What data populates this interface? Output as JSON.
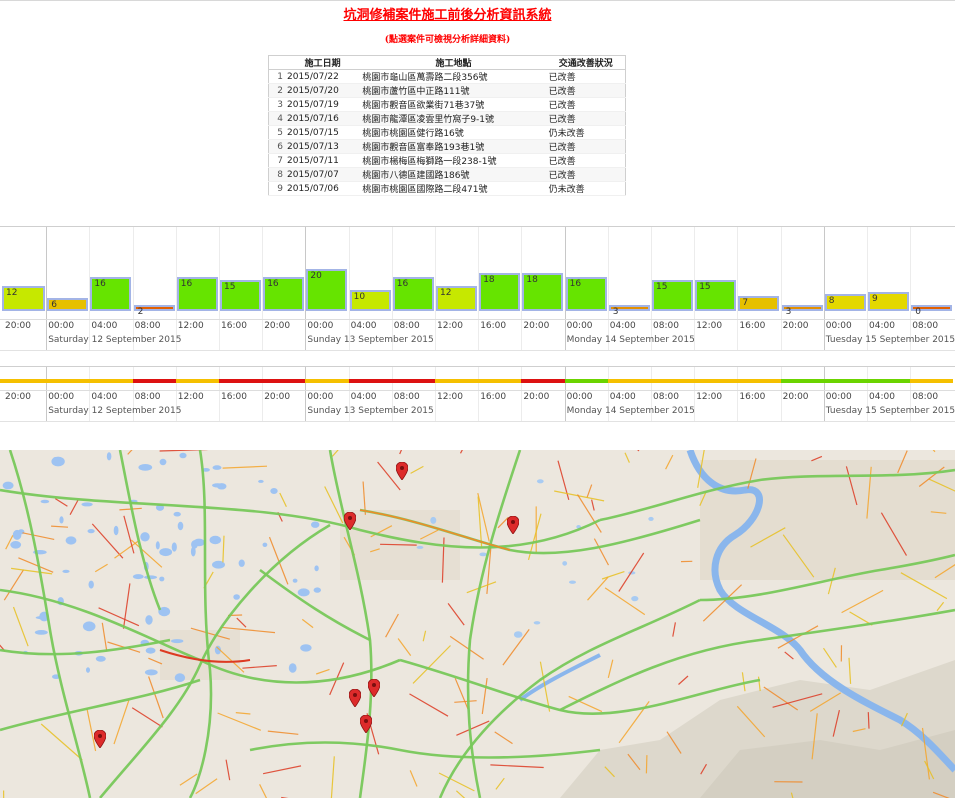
{
  "page": {
    "title": "坑洞修補案件施工前後分析資訊系統",
    "subtitle": "(點選案件可檢視分析詳細資料)"
  },
  "table": {
    "headers": [
      "施工日期",
      "施工地點",
      "交通改善狀況"
    ],
    "rows": [
      {
        "idx": "1",
        "date": "2015/07/22",
        "location": "桃園市龜山區萬壽路二段356號",
        "status": "已改善"
      },
      {
        "idx": "2",
        "date": "2015/07/20",
        "location": "桃園市蘆竹區中正路111號",
        "status": "已改善"
      },
      {
        "idx": "3",
        "date": "2015/07/19",
        "location": "桃園市觀音區欲業街71巷37號",
        "status": "已改善"
      },
      {
        "idx": "4",
        "date": "2015/07/16",
        "location": "桃園市龍潭區凌雲里竹窩子9-1號",
        "status": "已改善"
      },
      {
        "idx": "5",
        "date": "2015/07/15",
        "location": "桃園市桃園區健行路16號",
        "status": "仍未改善"
      },
      {
        "idx": "6",
        "date": "2015/07/13",
        "location": "桃園市觀音區富奉路193巷1號",
        "status": "已改善"
      },
      {
        "idx": "7",
        "date": "2015/07/11",
        "location": "桃園市楊梅區梅獅路一段238-1號",
        "status": "已改善"
      },
      {
        "idx": "8",
        "date": "2015/07/07",
        "location": "桃園市八德區建國路186號",
        "status": "已改善"
      },
      {
        "idx": "9",
        "date": "2015/07/06",
        "location": "桃園市桃園區國際路二段471號",
        "status": "仍未改善"
      }
    ]
  },
  "timeline_axis": {
    "ticks": [
      "20:00",
      "00:00",
      "04:00",
      "08:00",
      "12:00",
      "16:00",
      "20:00",
      "00:00",
      "04:00",
      "08:00",
      "12:00",
      "16:00",
      "20:00",
      "00:00",
      "04:00",
      "08:00",
      "12:00",
      "16:00",
      "20:00",
      "00:00",
      "04:00",
      "08:00"
    ],
    "day_labels": [
      "Saturday 12 September 2015",
      "Sunday 13 September 2015",
      "Monday 14 September 2015",
      "Tuesday 15 September 2015"
    ]
  },
  "colors": {
    "green": "#66e400",
    "lime": "#c6e800",
    "yellow": "#e4d800",
    "amber": "#e6c000",
    "orange": "#e49000",
    "deep_orange": "#e26000",
    "red": "#dd1111",
    "strip_yellow": "#f5c000",
    "strip_green": "#6bd400",
    "bar_border": "#a3b4e6"
  },
  "chart_data": {
    "type": "bar",
    "title": "",
    "xlabel": "",
    "ylabel": "",
    "bin_hours": 4,
    "categories": [
      "Sat 12 Sep 00:00",
      "Sat 12 Sep 04:00",
      "Sat 12 Sep 08:00",
      "Sat 12 Sep 12:00",
      "Sat 12 Sep 16:00",
      "Sat 12 Sep 20:00",
      "Sun 13 Sep 00:00",
      "Sun 13 Sep 04:00",
      "Sun 13 Sep 08:00",
      "Sun 13 Sep 12:00",
      "Sun 13 Sep 16:00",
      "Sun 13 Sep 20:00",
      "Mon 14 Sep 00:00",
      "Mon 14 Sep 04:00",
      "Mon 14 Sep 08:00",
      "Mon 14 Sep 12:00",
      "Mon 14 Sep 16:00",
      "Mon 14 Sep 20:00",
      "Tue 15 Sep 00:00",
      "Tue 15 Sep 04:00",
      "Tue 15 Sep 08:00"
    ],
    "values": [
      6,
      16,
      2,
      16,
      15,
      16,
      20,
      10,
      16,
      12,
      18,
      18,
      16,
      3,
      15,
      15,
      7,
      3,
      8,
      9,
      0
    ],
    "partial_first_bar": {
      "category": "Fri 11 Sep 20:00",
      "value": 12
    },
    "bar_colors": [
      "amber",
      "green",
      "deep_orange",
      "green",
      "green",
      "green",
      "green",
      "lime",
      "green",
      "lime",
      "green",
      "green",
      "green",
      "orange",
      "green",
      "green",
      "amber",
      "orange",
      "yellow",
      "yellow",
      "deep_orange"
    ],
    "ylim": [
      0,
      22
    ]
  },
  "status_strip": {
    "segments": [
      "strip_yellow",
      "strip_yellow",
      "strip_yellow",
      "red",
      "strip_yellow",
      "red",
      "red",
      "strip_yellow",
      "red",
      "red",
      "strip_yellow",
      "strip_yellow",
      "red",
      "strip_green",
      "strip_yellow",
      "strip_yellow",
      "strip_yellow",
      "strip_yellow",
      "strip_green",
      "strip_green",
      "strip_green",
      "strip_yellow"
    ]
  },
  "map": {
    "pins": [
      "case-1",
      "case-2",
      "case-3",
      "case-4",
      "case-5",
      "case-6",
      "case-7"
    ]
  }
}
